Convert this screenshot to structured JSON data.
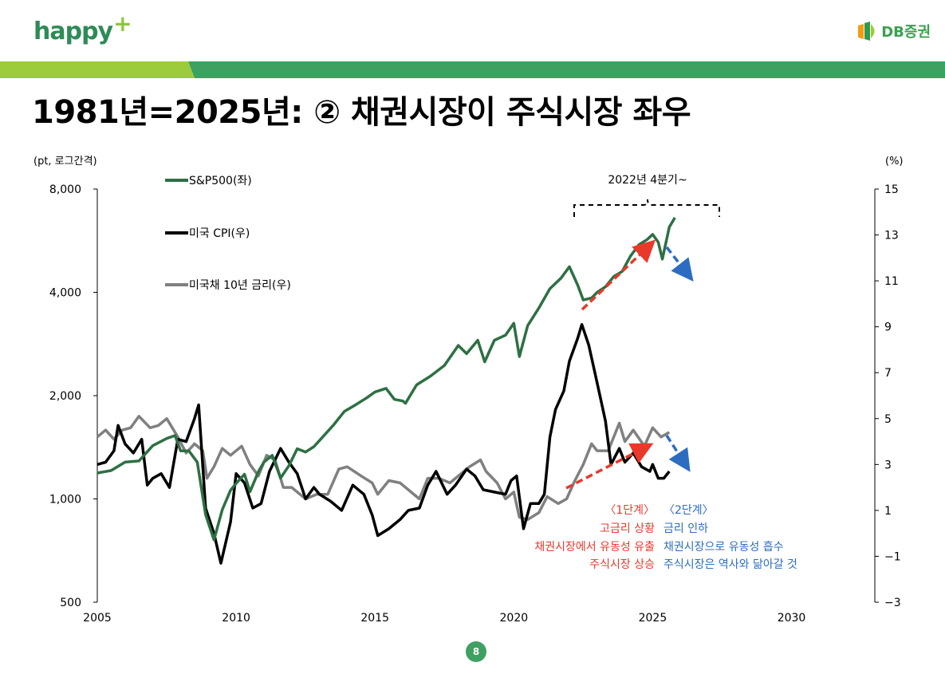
{
  "header": {
    "logo_left": "happy",
    "logo_right": "DB증권",
    "title": "1981년=2025년: ② 채권시장이 주식시장 좌우"
  },
  "page_number": "8",
  "colors": {
    "sp500": "#2d7043",
    "cpi": "#000000",
    "ust10y": "#808080",
    "red_arrow": "#e8392b",
    "blue_arrow": "#2c6dc2",
    "brand_green": "#3ea061",
    "brand_lightgreen": "#8cc63f"
  },
  "chart_data": {
    "type": "line",
    "left_unit": "(pt, 로그간격)",
    "right_unit": "(%)",
    "x_ticks": [
      "2005",
      "2010",
      "2015",
      "2020",
      "2025",
      "2030"
    ],
    "y_left_ticks": [
      "8,000",
      "4,000",
      "2,000",
      "1,000",
      "500"
    ],
    "y_left_log": true,
    "y_left_range": [
      500,
      8000
    ],
    "y_right_ticks": [
      "15",
      "13",
      "11",
      "9",
      "7",
      "5",
      "3",
      "1",
      "−1",
      "−3"
    ],
    "y_right_range": [
      -3,
      15
    ],
    "x_range": [
      2005,
      2033
    ],
    "series": [
      {
        "name": "S&P500(좌)",
        "axis": "left",
        "points": [
          [
            2005.0,
            1190
          ],
          [
            2005.5,
            1210
          ],
          [
            2006.0,
            1280
          ],
          [
            2006.5,
            1290
          ],
          [
            2007.0,
            1430
          ],
          [
            2007.5,
            1500
          ],
          [
            2007.8,
            1530
          ],
          [
            2008.0,
            1380
          ],
          [
            2008.3,
            1380
          ],
          [
            2008.6,
            1280
          ],
          [
            2008.9,
            900
          ],
          [
            2009.2,
            760
          ],
          [
            2009.5,
            930
          ],
          [
            2009.8,
            1060
          ],
          [
            2010.0,
            1110
          ],
          [
            2010.3,
            1180
          ],
          [
            2010.5,
            1050
          ],
          [
            2010.8,
            1200
          ],
          [
            2011.0,
            1280
          ],
          [
            2011.3,
            1340
          ],
          [
            2011.6,
            1150
          ],
          [
            2011.9,
            1250
          ],
          [
            2012.2,
            1400
          ],
          [
            2012.5,
            1370
          ],
          [
            2012.8,
            1420
          ],
          [
            2013.0,
            1480
          ],
          [
            2013.5,
            1640
          ],
          [
            2013.9,
            1800
          ],
          [
            2014.3,
            1880
          ],
          [
            2014.7,
            1970
          ],
          [
            2015.0,
            2050
          ],
          [
            2015.4,
            2100
          ],
          [
            2015.7,
            1950
          ],
          [
            2016.0,
            1930
          ],
          [
            2016.1,
            1900
          ],
          [
            2016.5,
            2150
          ],
          [
            2017.0,
            2280
          ],
          [
            2017.5,
            2450
          ],
          [
            2018.0,
            2800
          ],
          [
            2018.3,
            2650
          ],
          [
            2018.7,
            2900
          ],
          [
            2018.95,
            2510
          ],
          [
            2019.3,
            2900
          ],
          [
            2019.7,
            3000
          ],
          [
            2020.0,
            3250
          ],
          [
            2020.2,
            2600
          ],
          [
            2020.5,
            3200
          ],
          [
            2020.9,
            3600
          ],
          [
            2021.3,
            4100
          ],
          [
            2021.7,
            4400
          ],
          [
            2022.0,
            4750
          ],
          [
            2022.3,
            4200
          ],
          [
            2022.5,
            3800
          ],
          [
            2022.8,
            3850
          ],
          [
            2023.0,
            4000
          ],
          [
            2023.3,
            4150
          ],
          [
            2023.6,
            4450
          ],
          [
            2023.9,
            4600
          ],
          [
            2024.2,
            5100
          ],
          [
            2024.5,
            5500
          ],
          [
            2024.8,
            5700
          ],
          [
            2025.0,
            5900
          ],
          [
            2025.2,
            5600
          ],
          [
            2025.35,
            5000
          ],
          [
            2025.6,
            6200
          ],
          [
            2025.8,
            6600
          ]
        ]
      },
      {
        "name": "미국 CPI(우)",
        "axis": "right",
        "points": [
          [
            2005.0,
            3.0
          ],
          [
            2005.3,
            3.1
          ],
          [
            2005.6,
            3.6
          ],
          [
            2005.75,
            4.7
          ],
          [
            2006.0,
            3.9
          ],
          [
            2006.3,
            3.5
          ],
          [
            2006.6,
            4.1
          ],
          [
            2006.8,
            2.1
          ],
          [
            2007.0,
            2.4
          ],
          [
            2007.3,
            2.6
          ],
          [
            2007.6,
            2.0
          ],
          [
            2007.9,
            4.1
          ],
          [
            2008.2,
            4.0
          ],
          [
            2008.5,
            5.0
          ],
          [
            2008.65,
            5.6
          ],
          [
            2008.9,
            1.1
          ],
          [
            2009.2,
            0.0
          ],
          [
            2009.45,
            -1.3
          ],
          [
            2009.8,
            0.5
          ],
          [
            2010.0,
            2.6
          ],
          [
            2010.3,
            2.2
          ],
          [
            2010.6,
            1.1
          ],
          [
            2010.9,
            1.3
          ],
          [
            2011.2,
            2.7
          ],
          [
            2011.6,
            3.7
          ],
          [
            2011.9,
            3.1
          ],
          [
            2012.2,
            2.6
          ],
          [
            2012.5,
            1.5
          ],
          [
            2012.8,
            2.0
          ],
          [
            2013.0,
            1.7
          ],
          [
            2013.4,
            1.4
          ],
          [
            2013.8,
            1.0
          ],
          [
            2014.2,
            2.1
          ],
          [
            2014.6,
            1.7
          ],
          [
            2014.9,
            0.8
          ],
          [
            2015.1,
            -0.1
          ],
          [
            2015.5,
            0.2
          ],
          [
            2015.9,
            0.6
          ],
          [
            2016.2,
            1.0
          ],
          [
            2016.6,
            1.1
          ],
          [
            2016.9,
            2.1
          ],
          [
            2017.2,
            2.7
          ],
          [
            2017.6,
            1.7
          ],
          [
            2017.9,
            2.1
          ],
          [
            2018.3,
            2.8
          ],
          [
            2018.6,
            2.5
          ],
          [
            2018.9,
            1.9
          ],
          [
            2019.3,
            1.8
          ],
          [
            2019.7,
            1.7
          ],
          [
            2019.9,
            2.3
          ],
          [
            2020.1,
            2.5
          ],
          [
            2020.35,
            0.2
          ],
          [
            2020.6,
            1.3
          ],
          [
            2020.9,
            1.3
          ],
          [
            2021.1,
            1.7
          ],
          [
            2021.3,
            4.2
          ],
          [
            2021.5,
            5.4
          ],
          [
            2021.8,
            6.2
          ],
          [
            2022.0,
            7.5
          ],
          [
            2022.3,
            8.5
          ],
          [
            2022.45,
            9.1
          ],
          [
            2022.7,
            8.2
          ],
          [
            2022.9,
            7.1
          ],
          [
            2023.1,
            6.0
          ],
          [
            2023.3,
            4.9
          ],
          [
            2023.5,
            3.0
          ],
          [
            2023.8,
            3.7
          ],
          [
            2024.0,
            3.1
          ],
          [
            2024.3,
            3.5
          ],
          [
            2024.6,
            2.9
          ],
          [
            2024.9,
            2.7
          ],
          [
            2025.0,
            3.0
          ],
          [
            2025.2,
            2.4
          ],
          [
            2025.4,
            2.4
          ],
          [
            2025.6,
            2.7
          ]
        ]
      },
      {
        "name": "미국채 10년 금리(우)",
        "axis": "right",
        "points": [
          [
            2005.0,
            4.2
          ],
          [
            2005.3,
            4.5
          ],
          [
            2005.6,
            4.1
          ],
          [
            2005.9,
            4.5
          ],
          [
            2006.2,
            4.6
          ],
          [
            2006.5,
            5.1
          ],
          [
            2006.9,
            4.6
          ],
          [
            2007.2,
            4.7
          ],
          [
            2007.5,
            5.0
          ],
          [
            2007.9,
            4.2
          ],
          [
            2008.2,
            3.5
          ],
          [
            2008.5,
            3.9
          ],
          [
            2008.8,
            3.6
          ],
          [
            2008.95,
            2.4
          ],
          [
            2009.2,
            2.9
          ],
          [
            2009.5,
            3.7
          ],
          [
            2009.8,
            3.4
          ],
          [
            2010.2,
            3.8
          ],
          [
            2010.5,
            3.0
          ],
          [
            2010.8,
            2.5
          ],
          [
            2011.1,
            3.4
          ],
          [
            2011.4,
            3.2
          ],
          [
            2011.7,
            2.0
          ],
          [
            2012.0,
            2.0
          ],
          [
            2012.5,
            1.5
          ],
          [
            2012.9,
            1.7
          ],
          [
            2013.3,
            1.7
          ],
          [
            2013.7,
            2.8
          ],
          [
            2014.0,
            2.9
          ],
          [
            2014.5,
            2.5
          ],
          [
            2014.9,
            2.2
          ],
          [
            2015.1,
            1.7
          ],
          [
            2015.5,
            2.3
          ],
          [
            2015.9,
            2.2
          ],
          [
            2016.3,
            1.8
          ],
          [
            2016.6,
            1.5
          ],
          [
            2016.9,
            2.4
          ],
          [
            2017.3,
            2.4
          ],
          [
            2017.7,
            2.2
          ],
          [
            2018.0,
            2.5
          ],
          [
            2018.4,
            2.9
          ],
          [
            2018.8,
            3.2
          ],
          [
            2019.0,
            2.7
          ],
          [
            2019.4,
            2.2
          ],
          [
            2019.7,
            1.5
          ],
          [
            2020.0,
            1.8
          ],
          [
            2020.2,
            0.7
          ],
          [
            2020.5,
            0.6
          ],
          [
            2020.9,
            0.9
          ],
          [
            2021.2,
            1.6
          ],
          [
            2021.6,
            1.3
          ],
          [
            2021.9,
            1.5
          ],
          [
            2022.2,
            2.3
          ],
          [
            2022.5,
            3.0
          ],
          [
            2022.8,
            3.9
          ],
          [
            2023.0,
            3.6
          ],
          [
            2023.4,
            3.6
          ],
          [
            2023.8,
            4.8
          ],
          [
            2024.0,
            4.0
          ],
          [
            2024.3,
            4.5
          ],
          [
            2024.7,
            3.8
          ],
          [
            2025.0,
            4.6
          ],
          [
            2025.3,
            4.2
          ],
          [
            2025.6,
            4.4
          ]
        ]
      }
    ],
    "annotations": {
      "bracket_label": "2022년 4분기~",
      "stage1": [
        "〈1단계〉",
        "고금리 상황",
        "채권시장에서 유동성 유출",
        "주식시장 상승"
      ],
      "stage2": [
        "〈2단계〉",
        "금리 인하",
        "채권시장으로 유동성 흡수",
        "주식시장은 역사와 닮아갈 것"
      ]
    }
  }
}
